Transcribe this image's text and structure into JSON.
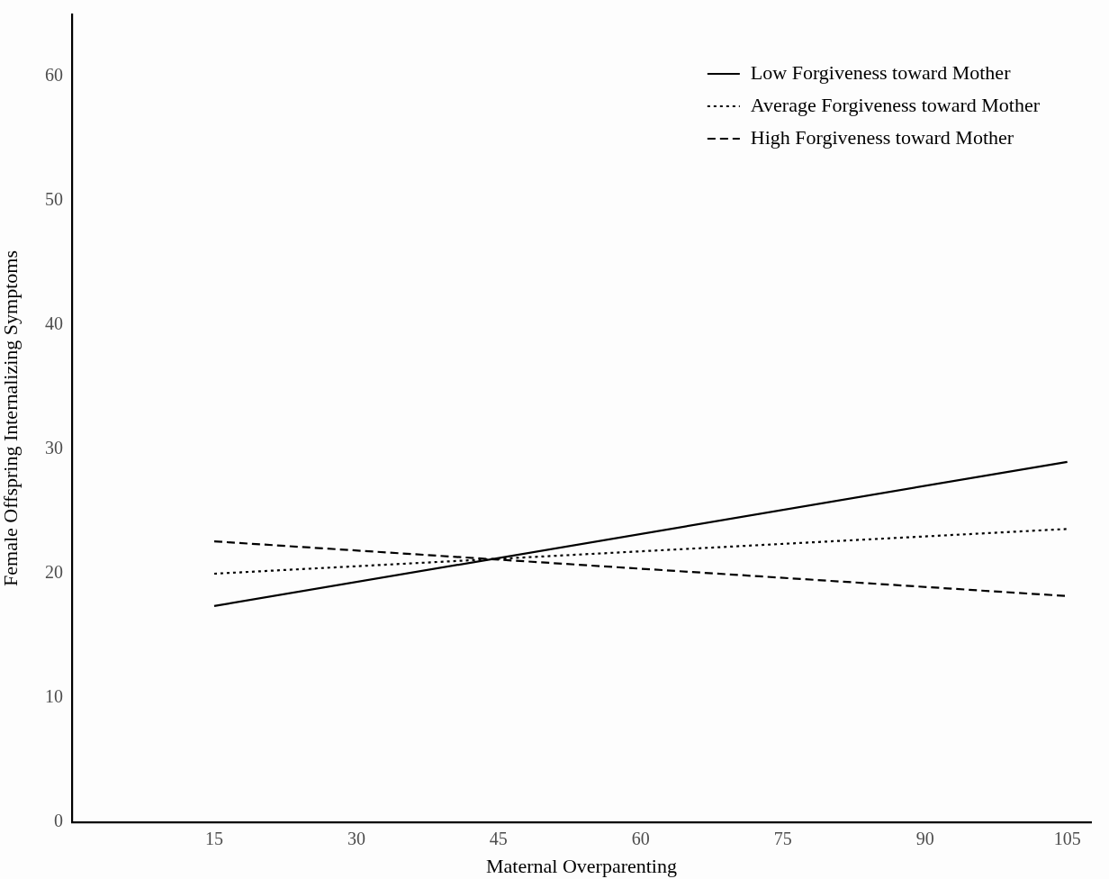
{
  "chart_data": {
    "type": "line",
    "xlabel": "Maternal Overparenting",
    "ylabel": "Female Offspring Internalizing Symptoms",
    "x": [
      15,
      105
    ],
    "series": [
      {
        "name": "Low Forgiveness toward Mother",
        "color": "#000000",
        "line_style": "solid",
        "values": [
          17.4,
          29.0
        ]
      },
      {
        "name": "Average Forgiveness toward Mother",
        "color": "#000000",
        "line_style": "dotted",
        "values": [
          20.0,
          23.6
        ]
      },
      {
        "name": "High Forgiveness toward Mother",
        "color": "#000000",
        "line_style": "dashed",
        "values": [
          22.6,
          18.2
        ]
      }
    ],
    "xlim": [
      0,
      107.5
    ],
    "xticks": [
      15,
      30,
      45,
      60,
      75,
      90,
      105
    ],
    "ylim": [
      0,
      65
    ],
    "yticks": [
      0,
      10,
      20,
      30,
      40,
      50,
      60
    ],
    "grid": false,
    "legend": "top right",
    "marker": "none"
  }
}
